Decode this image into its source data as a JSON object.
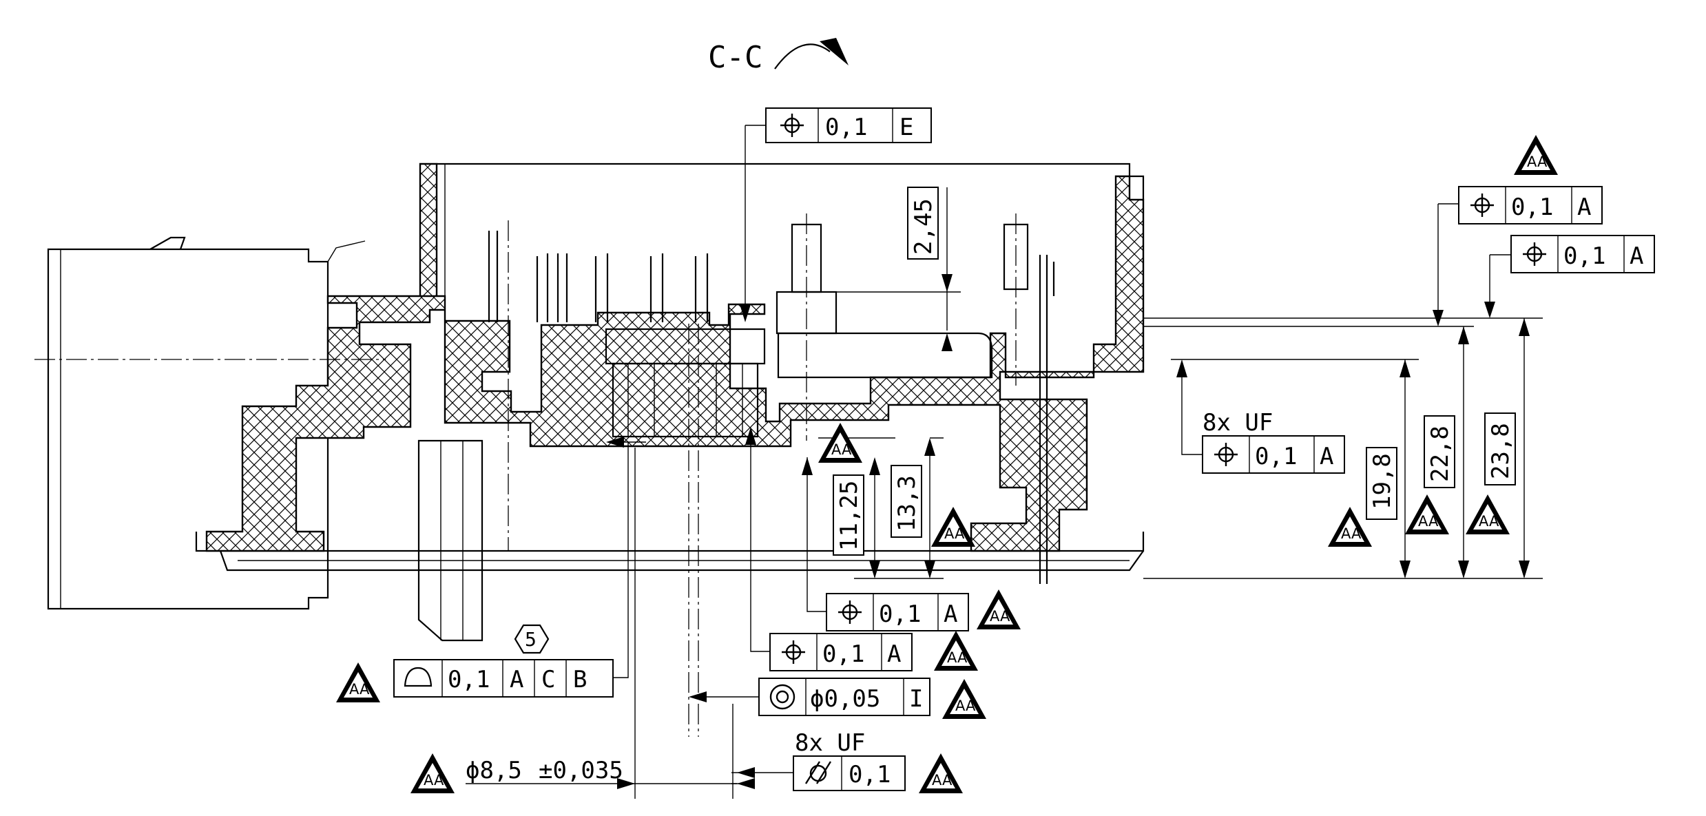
{
  "section": {
    "label": "C-C"
  },
  "fcf_frames": [
    {
      "id": "fcf-top-e",
      "symbol": "position-icon",
      "tolerance": "0,1",
      "datums": [
        "E"
      ]
    },
    {
      "id": "fcf-right-a1",
      "symbol": "position-icon",
      "tolerance": "0,1",
      "datums": [
        "A"
      ]
    },
    {
      "id": "fcf-right-a2",
      "symbol": "position-icon",
      "tolerance": "0,1",
      "datums": [
        "A"
      ]
    },
    {
      "id": "fcf-uf-a",
      "symbol": "position-icon",
      "tolerance": "0,1",
      "datums": [
        "A"
      ]
    },
    {
      "id": "fcf-mid-a1",
      "symbol": "position-icon",
      "tolerance": "0,1",
      "datums": [
        "A"
      ]
    },
    {
      "id": "fcf-mid-a2",
      "symbol": "position-icon",
      "tolerance": "0,1",
      "datums": [
        "A"
      ]
    },
    {
      "id": "fcf-profile",
      "symbol": "surface-profile-icon",
      "tolerance": "0,1",
      "datums": [
        "A",
        "C",
        "B"
      ]
    },
    {
      "id": "fcf-concentricity",
      "symbol": "concentricity-icon",
      "tolerance": "ϕ0,05",
      "datums": [
        "I"
      ]
    },
    {
      "id": "fcf-cylindricity",
      "symbol": "cylindricity-icon",
      "tolerance": "0,1",
      "datums": []
    }
  ],
  "annotations": {
    "uf_label_right": "8x UF",
    "uf_label_bottom": "8x UF",
    "hex_note": "5",
    "aa_marker": "AA"
  },
  "dimensions": {
    "d_2_45": "2,45",
    "d_19_8": "19,8",
    "d_22_8": "22,8",
    "d_23_8": "23,8",
    "d_11_25": "11,25",
    "d_13_3": "13,3",
    "d_diameter": "ϕ8,5",
    "d_diameter_tol": "±0,035"
  }
}
